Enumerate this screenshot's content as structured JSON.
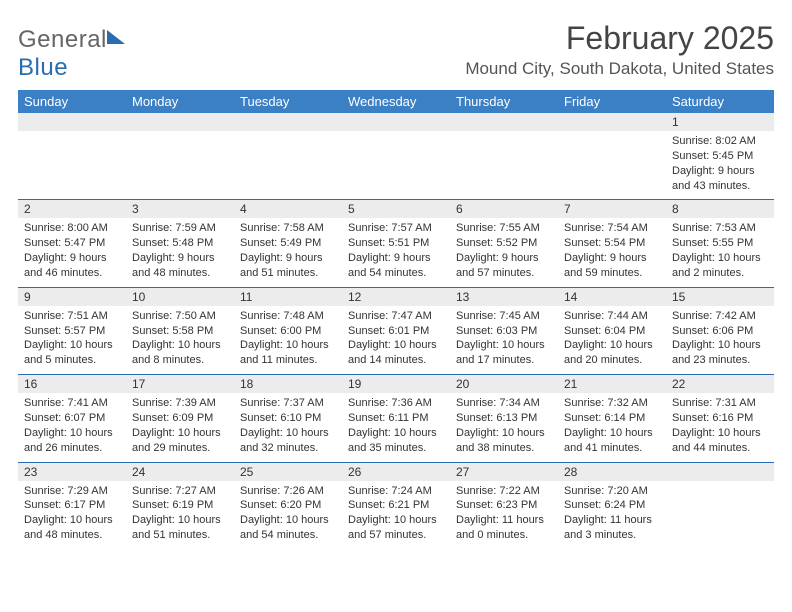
{
  "logo": {
    "part1": "General",
    "part2": "Blue"
  },
  "title": "February 2025",
  "location": "Mound City, South Dakota, United States",
  "weekdays": [
    "Sunday",
    "Monday",
    "Tuesday",
    "Wednesday",
    "Thursday",
    "Friday",
    "Saturday"
  ],
  "colors": {
    "header_bg": "#3b7fc4",
    "header_fg": "#ffffff",
    "daynum_bg": "#ececec",
    "rule": "#2b6cb0",
    "logo_blue": "#2b6cb0",
    "text": "#333333"
  },
  "weeks": [
    [
      null,
      null,
      null,
      null,
      null,
      null,
      {
        "n": "1",
        "sr": "8:02 AM",
        "ss": "5:45 PM",
        "dl": "9 hours and 43 minutes."
      }
    ],
    [
      {
        "n": "2",
        "sr": "8:00 AM",
        "ss": "5:47 PM",
        "dl": "9 hours and 46 minutes."
      },
      {
        "n": "3",
        "sr": "7:59 AM",
        "ss": "5:48 PM",
        "dl": "9 hours and 48 minutes."
      },
      {
        "n": "4",
        "sr": "7:58 AM",
        "ss": "5:49 PM",
        "dl": "9 hours and 51 minutes."
      },
      {
        "n": "5",
        "sr": "7:57 AM",
        "ss": "5:51 PM",
        "dl": "9 hours and 54 minutes."
      },
      {
        "n": "6",
        "sr": "7:55 AM",
        "ss": "5:52 PM",
        "dl": "9 hours and 57 minutes."
      },
      {
        "n": "7",
        "sr": "7:54 AM",
        "ss": "5:54 PM",
        "dl": "9 hours and 59 minutes."
      },
      {
        "n": "8",
        "sr": "7:53 AM",
        "ss": "5:55 PM",
        "dl": "10 hours and 2 minutes."
      }
    ],
    [
      {
        "n": "9",
        "sr": "7:51 AM",
        "ss": "5:57 PM",
        "dl": "10 hours and 5 minutes."
      },
      {
        "n": "10",
        "sr": "7:50 AM",
        "ss": "5:58 PM",
        "dl": "10 hours and 8 minutes."
      },
      {
        "n": "11",
        "sr": "7:48 AM",
        "ss": "6:00 PM",
        "dl": "10 hours and 11 minutes."
      },
      {
        "n": "12",
        "sr": "7:47 AM",
        "ss": "6:01 PM",
        "dl": "10 hours and 14 minutes."
      },
      {
        "n": "13",
        "sr": "7:45 AM",
        "ss": "6:03 PM",
        "dl": "10 hours and 17 minutes."
      },
      {
        "n": "14",
        "sr": "7:44 AM",
        "ss": "6:04 PM",
        "dl": "10 hours and 20 minutes."
      },
      {
        "n": "15",
        "sr": "7:42 AM",
        "ss": "6:06 PM",
        "dl": "10 hours and 23 minutes."
      }
    ],
    [
      {
        "n": "16",
        "sr": "7:41 AM",
        "ss": "6:07 PM",
        "dl": "10 hours and 26 minutes."
      },
      {
        "n": "17",
        "sr": "7:39 AM",
        "ss": "6:09 PM",
        "dl": "10 hours and 29 minutes."
      },
      {
        "n": "18",
        "sr": "7:37 AM",
        "ss": "6:10 PM",
        "dl": "10 hours and 32 minutes."
      },
      {
        "n": "19",
        "sr": "7:36 AM",
        "ss": "6:11 PM",
        "dl": "10 hours and 35 minutes."
      },
      {
        "n": "20",
        "sr": "7:34 AM",
        "ss": "6:13 PM",
        "dl": "10 hours and 38 minutes."
      },
      {
        "n": "21",
        "sr": "7:32 AM",
        "ss": "6:14 PM",
        "dl": "10 hours and 41 minutes."
      },
      {
        "n": "22",
        "sr": "7:31 AM",
        "ss": "6:16 PM",
        "dl": "10 hours and 44 minutes."
      }
    ],
    [
      {
        "n": "23",
        "sr": "7:29 AM",
        "ss": "6:17 PM",
        "dl": "10 hours and 48 minutes."
      },
      {
        "n": "24",
        "sr": "7:27 AM",
        "ss": "6:19 PM",
        "dl": "10 hours and 51 minutes."
      },
      {
        "n": "25",
        "sr": "7:26 AM",
        "ss": "6:20 PM",
        "dl": "10 hours and 54 minutes."
      },
      {
        "n": "26",
        "sr": "7:24 AM",
        "ss": "6:21 PM",
        "dl": "10 hours and 57 minutes."
      },
      {
        "n": "27",
        "sr": "7:22 AM",
        "ss": "6:23 PM",
        "dl": "11 hours and 0 minutes."
      },
      {
        "n": "28",
        "sr": "7:20 AM",
        "ss": "6:24 PM",
        "dl": "11 hours and 3 minutes."
      },
      null
    ]
  ],
  "labels": {
    "sunrise": "Sunrise:",
    "sunset": "Sunset:",
    "daylight": "Daylight:"
  }
}
